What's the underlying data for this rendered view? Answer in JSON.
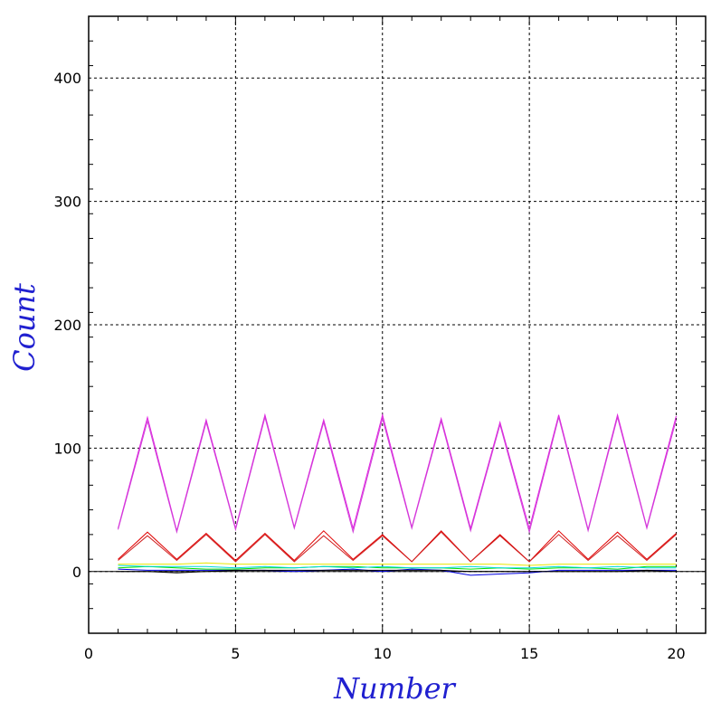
{
  "chart_data": {
    "type": "line",
    "xlabel": "Number",
    "ylabel": "Count",
    "xlim": [
      0,
      21
    ],
    "ylim": [
      -50,
      450
    ],
    "x_ticks": [
      0,
      5,
      10,
      15,
      20
    ],
    "y_ticks": [
      0,
      100,
      200,
      300,
      400
    ],
    "grid": true,
    "grid_style": "dotted",
    "x": [
      1,
      2,
      3,
      4,
      5,
      6,
      7,
      8,
      9,
      10,
      11,
      12,
      13,
      14,
      15,
      16,
      17,
      18,
      19,
      20
    ],
    "series": [
      {
        "color": "#e020e0",
        "values": [
          35,
          125,
          33,
          123,
          35,
          127,
          36,
          123,
          35,
          127,
          36,
          124,
          35,
          121,
          35,
          127,
          34,
          127,
          36,
          126
        ]
      },
      {
        "color": "#d040d8",
        "values": [
          34,
          122,
          32,
          121,
          34,
          125,
          35,
          121,
          32,
          124,
          35,
          122,
          33,
          119,
          32,
          125,
          33,
          125,
          35,
          123
        ]
      },
      {
        "color": "#e00000",
        "values": [
          10,
          32,
          10,
          31,
          9,
          31,
          9,
          33,
          10,
          30,
          8,
          33,
          8,
          30,
          8,
          33,
          10,
          32,
          10,
          31
        ]
      },
      {
        "color": "#d02020",
        "values": [
          9,
          29,
          9,
          30,
          8,
          30,
          8,
          29,
          9,
          29,
          8,
          32,
          8,
          29,
          8,
          30,
          9,
          29,
          9,
          30
        ]
      },
      {
        "color": "#e8e800",
        "values": [
          6,
          6,
          6,
          7,
          6,
          6,
          6,
          6,
          6,
          6,
          6,
          6,
          6,
          6,
          5,
          6,
          6,
          6,
          6,
          6
        ]
      },
      {
        "color": "#00e000",
        "values": [
          3,
          4,
          3,
          2,
          2,
          3,
          3,
          4,
          4,
          3,
          3,
          3,
          2,
          3,
          2,
          3,
          3,
          2,
          4,
          4
        ]
      },
      {
        "color": "#00d8d8",
        "values": [
          5,
          4,
          4,
          4,
          3,
          4,
          3,
          4,
          3,
          4,
          3,
          3,
          4,
          3,
          3,
          4,
          3,
          4,
          3,
          3
        ]
      },
      {
        "color": "#0000e0",
        "values": [
          2,
          1,
          1,
          1,
          1,
          1,
          0,
          1,
          2,
          0,
          2,
          1,
          -3,
          -2,
          -1,
          1,
          1,
          1,
          1,
          1
        ]
      },
      {
        "color": "#000000",
        "values": [
          0,
          0,
          -1,
          0,
          1,
          1,
          1,
          1,
          1,
          1,
          1,
          1,
          0,
          0,
          0,
          0,
          0,
          0,
          1,
          0
        ]
      }
    ]
  }
}
